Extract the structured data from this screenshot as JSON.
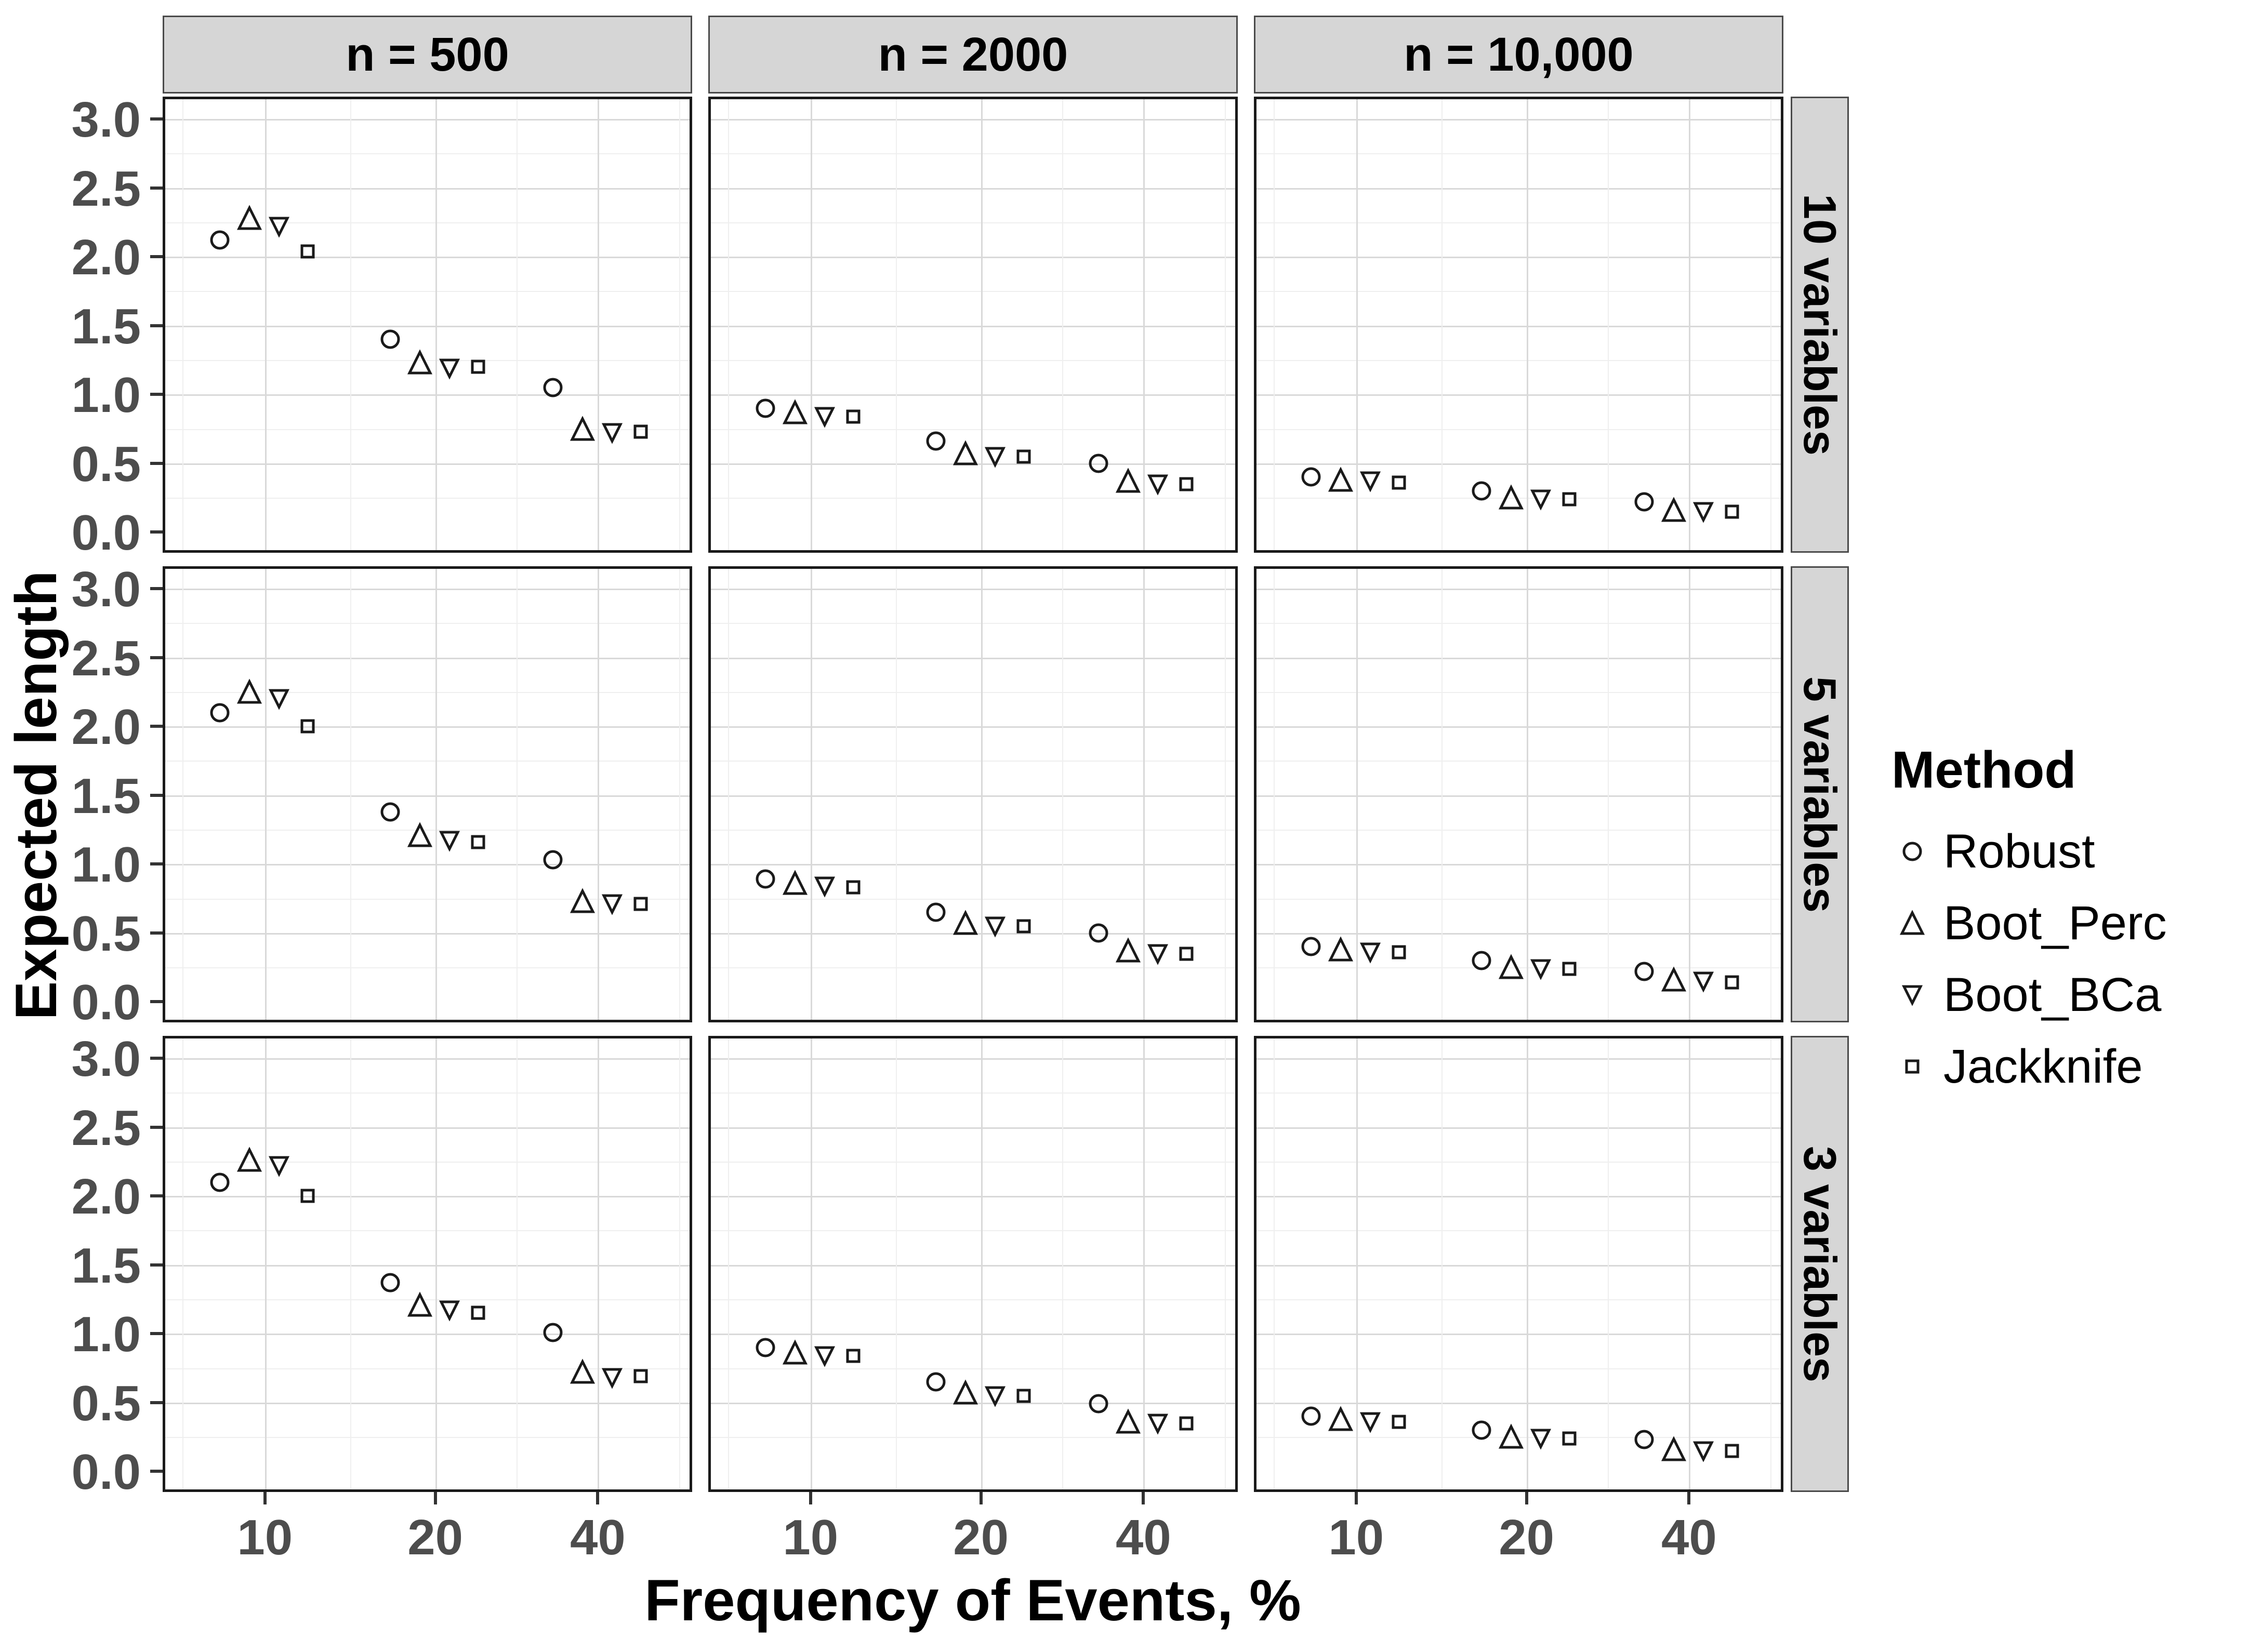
{
  "chart_data": {
    "type": "scatter",
    "title": "",
    "xlabel": "Frequency of Events, %",
    "ylabel": "Expected length",
    "x_scale": "log",
    "x_ticks": [
      "10",
      "20",
      "40"
    ],
    "frequencies": [
      10,
      20,
      40
    ],
    "y_ticks": [
      "3.0",
      "2.5",
      "2.0",
      "1.5",
      "1.0",
      "0.5",
      "0.0"
    ],
    "y_tick_values": [
      3.0,
      2.5,
      2.0,
      1.5,
      1.0,
      0.5,
      0.0
    ],
    "ylim": [
      0,
      3.1
    ],
    "grid": "major and minor, light gray, on",
    "facet_cols": [
      "n = 500",
      "n = 2000",
      "n = 10,000"
    ],
    "facet_rows": [
      "10 variables",
      "5 variables",
      "3 variables"
    ],
    "legend": {
      "title": "Method",
      "position": "right",
      "entries": [
        {
          "label": "Robust",
          "marker": "circle"
        },
        {
          "label": "Boot_Perc",
          "marker": "triangle-up"
        },
        {
          "label": "Boot_BCa",
          "marker": "triangle-down"
        },
        {
          "label": "Jackknife",
          "marker": "square"
        }
      ]
    },
    "colors": {
      "marker_stroke": "#1a1a1a",
      "grid_major": "#d9d9d9",
      "grid_minor": "#efefef",
      "strip_bg": "#d6d6d6",
      "axis_text": "#4d4d4d",
      "panel_border": "#1a1a1a",
      "background": "#ffffff"
    },
    "panels": [
      {
        "row": "10 variables",
        "col": "n = 500",
        "series": [
          {
            "name": "Robust",
            "values": [
              2.12,
              1.4,
              1.05
            ]
          },
          {
            "name": "Boot_Perc",
            "values": [
              2.28,
              1.23,
              0.75
            ]
          },
          {
            "name": "Boot_BCa",
            "values": [
              2.22,
              1.19,
              0.72
            ]
          },
          {
            "name": "Jackknife",
            "values": [
              2.04,
              1.2,
              0.73
            ]
          }
        ]
      },
      {
        "row": "10 variables",
        "col": "n = 2000",
        "series": [
          {
            "name": "Robust",
            "values": [
              0.9,
              0.66,
              0.5
            ]
          },
          {
            "name": "Boot_Perc",
            "values": [
              0.87,
              0.57,
              0.37
            ]
          },
          {
            "name": "Boot_BCa",
            "values": [
              0.84,
              0.55,
              0.35
            ]
          },
          {
            "name": "Jackknife",
            "values": [
              0.84,
              0.55,
              0.35
            ]
          }
        ]
      },
      {
        "row": "10 variables",
        "col": "n = 10,000",
        "series": [
          {
            "name": "Robust",
            "values": [
              0.4,
              0.3,
              0.22
            ]
          },
          {
            "name": "Boot_Perc",
            "values": [
              0.38,
              0.25,
              0.16
            ]
          },
          {
            "name": "Boot_BCa",
            "values": [
              0.37,
              0.24,
              0.15
            ]
          },
          {
            "name": "Jackknife",
            "values": [
              0.36,
              0.24,
              0.15
            ]
          }
        ]
      },
      {
        "row": "5 variables",
        "col": "n = 500",
        "series": [
          {
            "name": "Robust",
            "values": [
              2.1,
              1.38,
              1.03
            ]
          },
          {
            "name": "Boot_Perc",
            "values": [
              2.25,
              1.21,
              0.73
            ]
          },
          {
            "name": "Boot_BCa",
            "values": [
              2.2,
              1.17,
              0.71
            ]
          },
          {
            "name": "Jackknife",
            "values": [
              2.0,
              1.16,
              0.71
            ]
          }
        ]
      },
      {
        "row": "5 variables",
        "col": "n = 2000",
        "series": [
          {
            "name": "Robust",
            "values": [
              0.89,
              0.65,
              0.5
            ]
          },
          {
            "name": "Boot_Perc",
            "values": [
              0.86,
              0.57,
              0.37
            ]
          },
          {
            "name": "Boot_BCa",
            "values": [
              0.84,
              0.55,
              0.35
            ]
          },
          {
            "name": "Jackknife",
            "values": [
              0.83,
              0.55,
              0.35
            ]
          }
        ]
      },
      {
        "row": "5 variables",
        "col": "n = 10,000",
        "series": [
          {
            "name": "Robust",
            "values": [
              0.4,
              0.3,
              0.22
            ]
          },
          {
            "name": "Boot_Perc",
            "values": [
              0.38,
              0.25,
              0.16
            ]
          },
          {
            "name": "Boot_BCa",
            "values": [
              0.36,
              0.24,
              0.15
            ]
          },
          {
            "name": "Jackknife",
            "values": [
              0.36,
              0.24,
              0.14
            ]
          }
        ]
      },
      {
        "row": "3 variables",
        "col": "n = 500",
        "series": [
          {
            "name": "Robust",
            "values": [
              2.1,
              1.37,
              1.01
            ]
          },
          {
            "name": "Boot_Perc",
            "values": [
              2.26,
              1.21,
              0.72
            ]
          },
          {
            "name": "Boot_BCa",
            "values": [
              2.22,
              1.17,
              0.68
            ]
          },
          {
            "name": "Jackknife",
            "values": [
              2.0,
              1.15,
              0.69
            ]
          }
        ]
      },
      {
        "row": "3 variables",
        "col": "n = 2000",
        "series": [
          {
            "name": "Robust",
            "values": [
              0.9,
              0.65,
              0.49
            ]
          },
          {
            "name": "Boot_Perc",
            "values": [
              0.86,
              0.57,
              0.36
            ]
          },
          {
            "name": "Boot_BCa",
            "values": [
              0.84,
              0.55,
              0.35
            ]
          },
          {
            "name": "Jackknife",
            "values": [
              0.84,
              0.55,
              0.35
            ]
          }
        ]
      },
      {
        "row": "3 variables",
        "col": "n = 10,000",
        "series": [
          {
            "name": "Robust",
            "values": [
              0.4,
              0.3,
              0.23
            ]
          },
          {
            "name": "Boot_Perc",
            "values": [
              0.38,
              0.25,
              0.16
            ]
          },
          {
            "name": "Boot_BCa",
            "values": [
              0.36,
              0.24,
              0.15
            ]
          },
          {
            "name": "Jackknife",
            "values": [
              0.36,
              0.24,
              0.15
            ]
          }
        ]
      }
    ]
  }
}
